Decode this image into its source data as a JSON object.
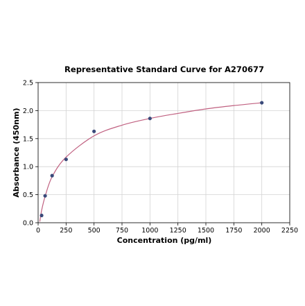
{
  "chart_data": {
    "type": "scatter",
    "title": "Representative Standard Curve for A270677",
    "xlabel": "Concentration (pg/ml)",
    "ylabel": "Absorbance (450nm)",
    "xlim": [
      0,
      2250
    ],
    "ylim": [
      0,
      2.5
    ],
    "x_ticks": [
      "0",
      "250",
      "500",
      "750",
      "1000",
      "1250",
      "1500",
      "1750",
      "2000",
      "2250"
    ],
    "y_ticks": [
      "0.0",
      "0.5",
      "1.0",
      "1.5",
      "2.0",
      "2.5"
    ],
    "grid": true,
    "legend": "none",
    "series": [
      {
        "x": [
          31.25,
          62.5,
          125,
          250,
          500,
          1000,
          2000
        ],
        "y": [
          0.13,
          0.48,
          0.84,
          1.13,
          1.63,
          1.86,
          2.14
        ]
      }
    ],
    "fit_curve": {
      "x": [
        15,
        31.25,
        62.5,
        125,
        250,
        500,
        750,
        1000,
        1250,
        1500,
        1750,
        2000
      ],
      "y": [
        0.02,
        0.22,
        0.47,
        0.82,
        1.17,
        1.55,
        1.74,
        1.86,
        1.95,
        2.03,
        2.09,
        2.14
      ]
    },
    "colors": {
      "point": "#3a4a7a",
      "curve": "#c06080"
    }
  }
}
